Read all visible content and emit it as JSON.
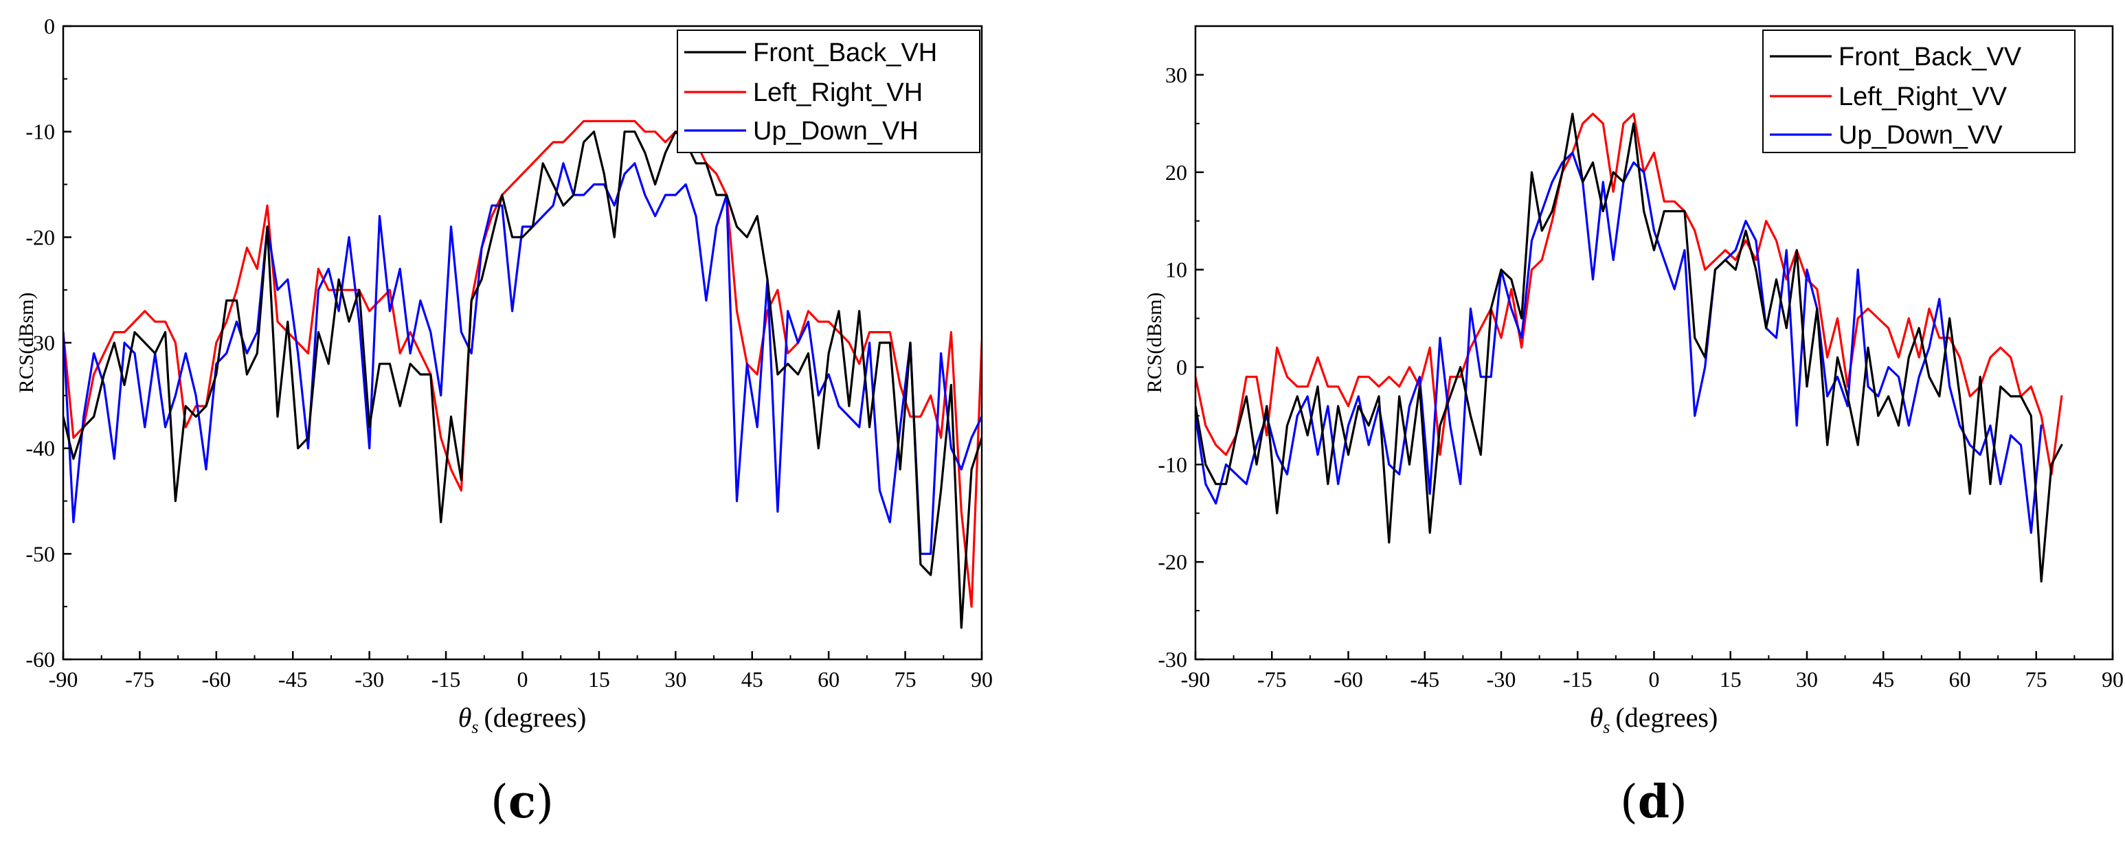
{
  "chart_data": [
    {
      "type": "line",
      "panel_label": {
        "open": "(",
        "letter": "c",
        "close": ")"
      },
      "xlabel": {
        "symbol": "θ",
        "subscript": "s",
        "text": "(degrees)"
      },
      "ylabel": "RCS(dBsm)",
      "xlim": [
        -90,
        90
      ],
      "ylim": [
        -60,
        0
      ],
      "xticks": [
        -90,
        -75,
        -60,
        -45,
        -30,
        -15,
        0,
        15,
        30,
        45,
        60,
        75,
        90
      ],
      "yticks": [
        -60,
        -50,
        -40,
        -30,
        -20,
        -10,
        0
      ],
      "legend_position": "top-right",
      "x_start": -90,
      "x_step": 2,
      "series": [
        {
          "name": "Front_Back_VH",
          "color": "#000000",
          "values": [
            -37,
            -41,
            -38,
            -37,
            -33,
            -30,
            -34,
            -29,
            -30,
            -31,
            -29,
            -45,
            -36,
            -37,
            -36,
            -33,
            -26,
            -26,
            -33,
            -31,
            -19,
            -37,
            -28,
            -40,
            -39,
            -29,
            -32,
            -24,
            -28,
            -25,
            -38,
            -32,
            -32,
            -36,
            -32,
            -33,
            -33,
            -47,
            -37,
            -43,
            -26,
            -24,
            -20,
            -16,
            -20,
            -20,
            -19,
            -13,
            -15,
            -17,
            -16,
            -11,
            -10,
            -14,
            -20,
            -10,
            -10,
            -12,
            -15,
            -12,
            -10,
            -11,
            -13,
            -13,
            -16,
            -16,
            -19,
            -20,
            -18,
            -24,
            -33,
            -32,
            -33,
            -31,
            -40,
            -31,
            -27,
            -36,
            -27,
            -38,
            -30,
            -30,
            -42,
            -30,
            -51,
            -52,
            -44,
            -34,
            -57,
            -42,
            -39,
            -48,
            -45
          ]
        },
        {
          "name": "Left_Right_VH",
          "color": "#ff0000",
          "values": [
            -29,
            -39,
            -38,
            -33,
            -31,
            -29,
            -29,
            -28,
            -27,
            -28,
            -28,
            -30,
            -38,
            -36,
            -36,
            -30,
            -28,
            -25,
            -21,
            -23,
            -17,
            -28,
            -29,
            -30,
            -31,
            -23,
            -25,
            -25,
            -25,
            -25,
            -27,
            -26,
            -25,
            -31,
            -29,
            -31,
            -33,
            -39,
            -42,
            -44,
            -26,
            -21,
            -18,
            -16,
            -15,
            -14,
            -13,
            -12,
            -11,
            -11,
            -10,
            -9,
            -9,
            -9,
            -9,
            -9,
            -9,
            -10,
            -10,
            -11,
            -10,
            -10,
            -11,
            -13,
            -14,
            -16,
            -27,
            -32,
            -33,
            -27,
            -25,
            -31,
            -30,
            -27,
            -28,
            -28,
            -29,
            -30,
            -32,
            -29,
            -29,
            -29,
            -34,
            -37,
            -37,
            -35,
            -39,
            -29,
            -46,
            -55,
            -30,
            -34,
            -38
          ]
        },
        {
          "name": "Up_Down_VH",
          "color": "#0000ff",
          "values": [
            -29,
            -47,
            -37,
            -31,
            -34,
            -41,
            -30,
            -31,
            -38,
            -31,
            -38,
            -35,
            -31,
            -35,
            -42,
            -32,
            -31,
            -28,
            -31,
            -29,
            -19,
            -25,
            -24,
            -31,
            -40,
            -25,
            -23,
            -27,
            -20,
            -28,
            -40,
            -18,
            -27,
            -23,
            -31,
            -26,
            -29,
            -35,
            -19,
            -29,
            -31,
            -21,
            -17,
            -17,
            -27,
            -19,
            -19,
            -18,
            -17,
            -13,
            -16,
            -16,
            -15,
            -15,
            -17,
            -14,
            -13,
            -16,
            -18,
            -16,
            -16,
            -15,
            -18,
            -26,
            -19,
            -16,
            -45,
            -32,
            -38,
            -24,
            -46,
            -27,
            -30,
            -28,
            -35,
            -33,
            -36,
            -37,
            -38,
            -30,
            -44,
            -47,
            -38,
            -30,
            -50,
            -50,
            -31,
            -40,
            -42,
            -39,
            -37,
            -38,
            -39
          ]
        }
      ]
    },
    {
      "type": "line",
      "panel_label": {
        "open": "(",
        "letter": "d",
        "close": ")"
      },
      "xlabel": {
        "symbol": "θ",
        "subscript": "s",
        "text": "(degrees)"
      },
      "ylabel": "RCS(dBsm)",
      "xlim": [
        -90,
        90
      ],
      "ylim": [
        -30,
        35
      ],
      "xticks": [
        -90,
        -75,
        -60,
        -45,
        -30,
        -15,
        0,
        15,
        30,
        45,
        60,
        75,
        90
      ],
      "yticks": [
        -30,
        -20,
        -10,
        0,
        10,
        20,
        30
      ],
      "legend_position": "top-right",
      "x_start": -90,
      "x_step": 2,
      "series": [
        {
          "name": "Front_Back_VV",
          "color": "#000000",
          "values": [
            -4,
            -10,
            -12,
            -12,
            -7,
            -3,
            -10,
            -4,
            -15,
            -6,
            -3,
            -7,
            -2,
            -12,
            -4,
            -9,
            -4,
            -6,
            -3,
            -18,
            -3,
            -10,
            -2,
            -17,
            -6,
            -3,
            0,
            -5,
            -9,
            6,
            10,
            9,
            5,
            20,
            14,
            16,
            20,
            26,
            19,
            21,
            16,
            20,
            19,
            25,
            16,
            12,
            16,
            16,
            16,
            3,
            1,
            10,
            11,
            10,
            14,
            10,
            4,
            9,
            4,
            12,
            -2,
            6,
            -8,
            1,
            -3,
            -8,
            2,
            -5,
            -3,
            -6,
            1,
            4,
            -1,
            -3,
            5,
            -3,
            -13,
            -1,
            -12,
            -2,
            -3,
            -3,
            -5,
            -22,
            -10,
            -8
          ]
        },
        {
          "name": "Left_Right_VV",
          "color": "#ff0000",
          "values": [
            -1,
            -6,
            -8,
            -9,
            -7,
            -1,
            -1,
            -7,
            2,
            -1,
            -2,
            -2,
            1,
            -2,
            -2,
            -4,
            -1,
            -1,
            -2,
            -1,
            -2,
            0,
            -2,
            2,
            -9,
            -1,
            -1,
            2,
            4,
            6,
            3,
            8,
            2,
            10,
            11,
            15,
            20,
            22,
            25,
            26,
            25,
            18,
            25,
            26,
            20,
            22,
            17,
            17,
            16,
            14,
            10,
            11,
            12,
            11,
            13,
            11,
            15,
            13,
            9,
            12,
            9,
            8,
            1,
            5,
            -2,
            5,
            6,
            5,
            4,
            1,
            5,
            1,
            6,
            3,
            3,
            1,
            -3,
            -2,
            1,
            2,
            1,
            -3,
            -2,
            -5,
            -11,
            -3
          ]
        },
        {
          "name": "Up_Down_VV",
          "color": "#0000ff",
          "values": [
            -5,
            -12,
            -14,
            -10,
            -11,
            -12,
            -8,
            -5,
            -9,
            -11,
            -5,
            -3,
            -9,
            -4,
            -12,
            -6,
            -3,
            -8,
            -4,
            -10,
            -11,
            -4,
            -1,
            -13,
            3,
            -6,
            -12,
            6,
            -1,
            -1,
            10,
            6,
            3,
            13,
            16,
            19,
            21,
            22,
            19,
            9,
            19,
            11,
            19,
            21,
            20,
            14,
            11,
            8,
            12,
            -5,
            0,
            10,
            11,
            12,
            15,
            13,
            4,
            3,
            12,
            -6,
            10,
            6,
            -3,
            -1,
            -4,
            10,
            -2,
            -3,
            0,
            -1,
            -6,
            -1,
            2,
            7,
            -2,
            -6,
            -8,
            -9,
            -6,
            -12,
            -7,
            -8,
            -17,
            -6
          ]
        }
      ]
    }
  ]
}
